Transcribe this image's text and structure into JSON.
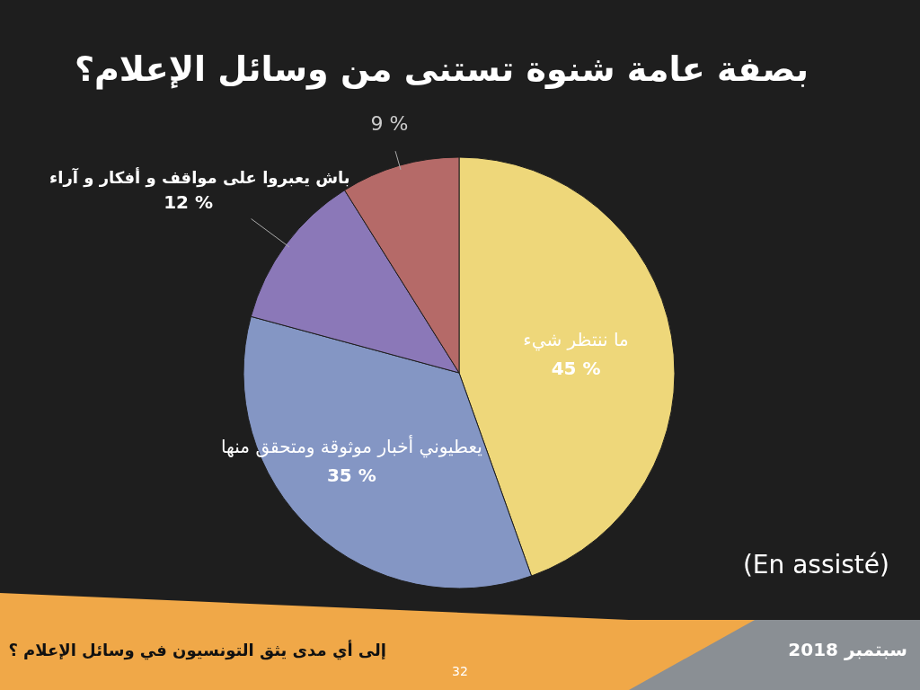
{
  "chart_data": {
    "type": "pie",
    "title": "بصفة عامة شنوة تستنى من وسائل الإعلام؟",
    "categories": [
      "ما ننتظر شيء",
      "يعطيوني أخبار موثوقة ومتحقق منها",
      "باش يعبروا على مواقف و أفكار و آراء",
      null
    ],
    "values": [
      45,
      35,
      12,
      9
    ],
    "value_labels": [
      "45 %",
      "35 %",
      "12 %",
      "9 %"
    ],
    "colors": [
      "#eed77a",
      "#8496c4",
      "#8b78b8",
      "#b56a68"
    ],
    "annotations": [
      "(En assisté)",
      "إلى أي مدى يثق التونسيون في وسائل الإعلام ؟",
      "سبتمبر 2018",
      "32"
    ]
  }
}
